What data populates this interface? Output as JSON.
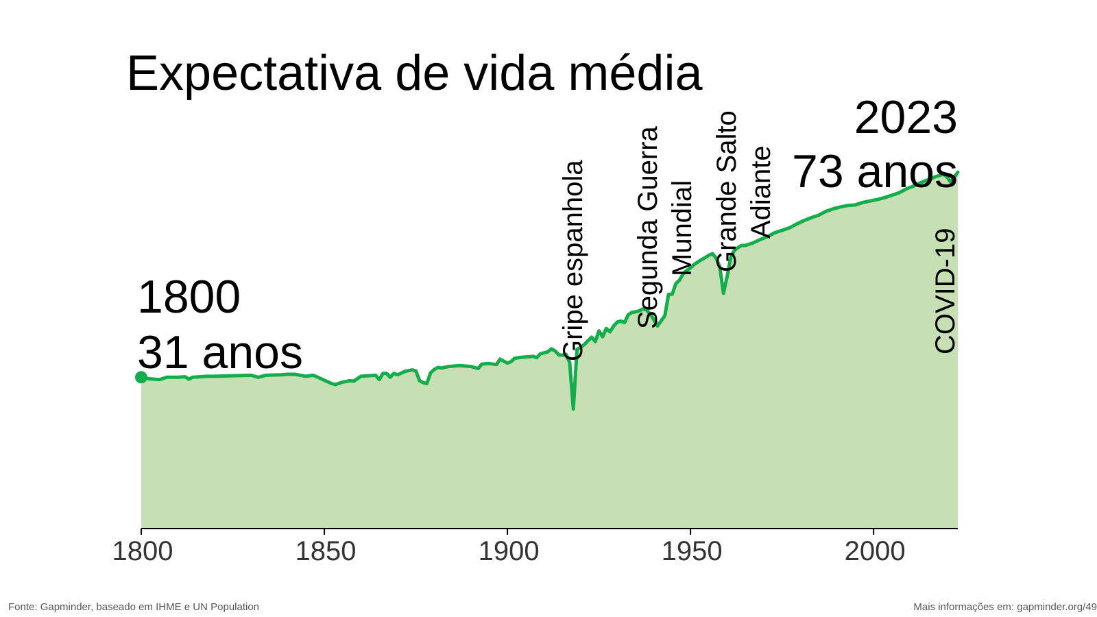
{
  "footer": {
    "source": "Fonte: Gapminder, baseado em IHME e UN Population",
    "more_info": "Mais informações em: gapminder.org/49"
  },
  "colors": {
    "line": "#13ad4b",
    "fill": "#c6e0b4",
    "axis": "#000000"
  },
  "chart_data": {
    "type": "area",
    "title": "Expectativa de vida média",
    "xlabel": "",
    "ylabel": "",
    "xlim": [
      1800,
      2023
    ],
    "ylim": [
      0,
      100
    ],
    "grid": false,
    "legend": "none",
    "x_ticks": [
      1800,
      1850,
      1900,
      1950,
      2000
    ],
    "start_label": {
      "year": "1800",
      "value": "31 anos"
    },
    "end_label": {
      "year": "2023",
      "value": "73 anos"
    },
    "events": [
      {
        "label": "Gripe espanhola",
        "year": 1918
      },
      {
        "label": "Segunda Guerra",
        "year": 1940
      },
      {
        "label": "Mundial",
        "year": 1940
      },
      {
        "label": "Grande Salto",
        "year": 1959
      },
      {
        "label": "Adiante",
        "year": 1959
      },
      {
        "label": "COVID-19",
        "year": 2021
      }
    ],
    "series": [
      {
        "points": [
          [
            1800,
            31
          ],
          [
            1802,
            30.7
          ],
          [
            1805,
            30.5
          ],
          [
            1807,
            31
          ],
          [
            1810,
            31
          ],
          [
            1812,
            31.1
          ],
          [
            1813,
            30.6
          ],
          [
            1814,
            31
          ],
          [
            1816,
            31.1
          ],
          [
            1818,
            31.2
          ],
          [
            1820,
            31.2
          ],
          [
            1825,
            31.3
          ],
          [
            1830,
            31.4
          ],
          [
            1832,
            31
          ],
          [
            1834,
            31.4
          ],
          [
            1838,
            31.5
          ],
          [
            1840,
            31.6
          ],
          [
            1842,
            31.6
          ],
          [
            1845,
            31.2
          ],
          [
            1847,
            31.4
          ],
          [
            1850,
            30.4
          ],
          [
            1852,
            29.7
          ],
          [
            1853,
            29.5
          ],
          [
            1855,
            30
          ],
          [
            1857,
            30.3
          ],
          [
            1858,
            30.2
          ],
          [
            1860,
            31.2
          ],
          [
            1862,
            31.3
          ],
          [
            1864,
            31.4
          ],
          [
            1865,
            30.5
          ],
          [
            1866,
            31.8
          ],
          [
            1867,
            31.8
          ],
          [
            1868,
            31
          ],
          [
            1869,
            31.8
          ],
          [
            1870,
            31.5
          ],
          [
            1872,
            32.2
          ],
          [
            1874,
            32.5
          ],
          [
            1875,
            32.3
          ],
          [
            1876,
            30.3
          ],
          [
            1877,
            29.9
          ],
          [
            1878,
            29.7
          ],
          [
            1879,
            31.9
          ],
          [
            1880,
            32.6
          ],
          [
            1881,
            33
          ],
          [
            1882,
            32.9
          ],
          [
            1884,
            33.2
          ],
          [
            1887,
            33.4
          ],
          [
            1890,
            33.2
          ],
          [
            1892,
            32.8
          ],
          [
            1893,
            33.7
          ],
          [
            1895,
            33.8
          ],
          [
            1897,
            33.6
          ],
          [
            1898,
            34.7
          ],
          [
            1899,
            34.3
          ],
          [
            1900,
            33.9
          ],
          [
            1901,
            34.2
          ],
          [
            1902,
            34.9
          ],
          [
            1904,
            35.1
          ],
          [
            1906,
            35.2
          ],
          [
            1907,
            35.3
          ],
          [
            1908,
            35
          ],
          [
            1909,
            35.8
          ],
          [
            1910,
            36
          ],
          [
            1911,
            36.2
          ],
          [
            1912,
            36.8
          ],
          [
            1913,
            36.4
          ],
          [
            1914,
            35.6
          ],
          [
            1915,
            35.5
          ],
          [
            1916,
            35.7
          ],
          [
            1917,
            34
          ],
          [
            1918,
            24.5
          ],
          [
            1919,
            36.7
          ],
          [
            1920,
            37.1
          ],
          [
            1921,
            37.7
          ],
          [
            1922,
            38.5
          ],
          [
            1923,
            39.2
          ],
          [
            1924,
            38.3
          ],
          [
            1925,
            40.5
          ],
          [
            1926,
            39.3
          ],
          [
            1927,
            41
          ],
          [
            1928,
            40.3
          ],
          [
            1929,
            41.5
          ],
          [
            1930,
            42.3
          ],
          [
            1931,
            42.5
          ],
          [
            1932,
            42.2
          ],
          [
            1933,
            43.8
          ],
          [
            1934,
            44.3
          ],
          [
            1935,
            44.4
          ],
          [
            1936,
            44.6
          ],
          [
            1937,
            45
          ],
          [
            1938,
            44.8
          ],
          [
            1939,
            43.9
          ],
          [
            1940,
            42.8
          ],
          [
            1941,
            41.5
          ],
          [
            1942,
            42.6
          ],
          [
            1943,
            43.6
          ],
          [
            1944,
            48
          ],
          [
            1945,
            48
          ],
          [
            1946,
            50.2
          ],
          [
            1947,
            50.9
          ],
          [
            1948,
            52.2
          ],
          [
            1949,
            52.9
          ],
          [
            1950,
            53.4
          ],
          [
            1951,
            54.1
          ],
          [
            1952,
            54.6
          ],
          [
            1953,
            55.1
          ],
          [
            1954,
            55.5
          ],
          [
            1955,
            56
          ],
          [
            1956,
            56.3
          ],
          [
            1957,
            55.4
          ],
          [
            1958,
            53.6
          ],
          [
            1959,
            48.2
          ],
          [
            1960,
            51.6
          ],
          [
            1961,
            55.6
          ],
          [
            1962,
            57
          ],
          [
            1963,
            57.6
          ],
          [
            1964,
            58
          ],
          [
            1965,
            58
          ],
          [
            1967,
            58.5
          ],
          [
            1969,
            59.2
          ],
          [
            1971,
            59.8
          ],
          [
            1973,
            60.6
          ],
          [
            1975,
            61.1
          ],
          [
            1977,
            61.6
          ],
          [
            1979,
            62.4
          ],
          [
            1981,
            63.1
          ],
          [
            1983,
            63.7
          ],
          [
            1985,
            64.2
          ],
          [
            1987,
            65
          ],
          [
            1989,
            65.5
          ],
          [
            1991,
            65.9
          ],
          [
            1993,
            66.2
          ],
          [
            1995,
            66.3
          ],
          [
            1997,
            66.8
          ],
          [
            1999,
            67.1
          ],
          [
            2001,
            67.4
          ],
          [
            2003,
            67.8
          ],
          [
            2005,
            68.3
          ],
          [
            2007,
            68.8
          ],
          [
            2009,
            69.6
          ],
          [
            2011,
            70.2
          ],
          [
            2013,
            70.9
          ],
          [
            2015,
            71.5
          ],
          [
            2017,
            72.1
          ],
          [
            2019,
            72.6
          ],
          [
            2020,
            72.1
          ],
          [
            2021,
            71
          ],
          [
            2022,
            72
          ],
          [
            2023,
            73
          ]
        ]
      }
    ]
  }
}
